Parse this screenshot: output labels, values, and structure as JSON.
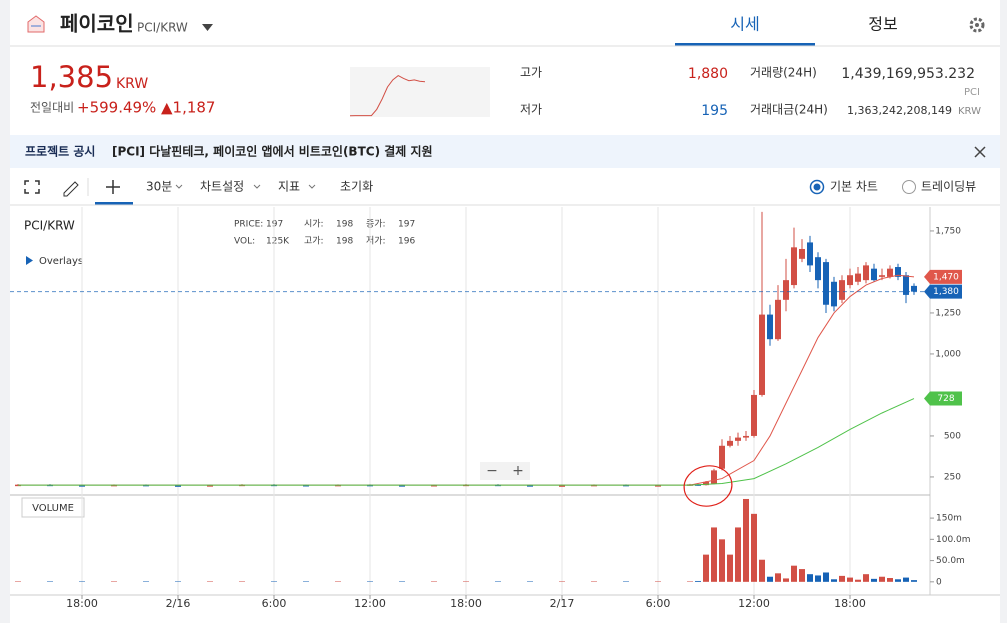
{
  "header": {
    "coin": "페이코인",
    "pair": "PCI/KRW",
    "tabs": [
      "시세",
      "정보"
    ]
  },
  "price": {
    "value": "1,385",
    "unit": "KRW",
    "change_label": "전일대비",
    "change_pct": "+599.49%",
    "change_abs": "▲1,187"
  },
  "sparkline": {
    "values": [
      195,
      197,
      196,
      198,
      200,
      420,
      780,
      1200,
      1450,
      1600,
      1500,
      1420,
      1450,
      1400,
      1385
    ],
    "ylim": [
      150,
      1900
    ],
    "color": "#d24f45"
  },
  "stats": {
    "high_label": "고가",
    "high": "1,880",
    "low_label": "저가",
    "low": "195",
    "volume_label": "거래량(24H)",
    "volume": "1,439,169,953.232",
    "volume_unit": "PCI",
    "amount_label": "거래대금(24H)",
    "amount": "1,363,242,208,149",
    "amount_unit": "KRW"
  },
  "notice": {
    "label": "프로젝트 공시",
    "text": "[PCI] 다날핀테크, 페이코인 앱에서 비트코인(BTC) 결제 지원"
  },
  "toolbar": {
    "interval": "30분",
    "chart_settings": "차트설정",
    "indicators": "지표",
    "reset": "초기화",
    "basic_chart": "기본 차트",
    "tradingview": "트레이딩뷰",
    "zoom_out": "−",
    "zoom_in": "+"
  },
  "legend": {
    "symbol": "PCI/KRW",
    "overlays": "Overlays",
    "row1": [
      "PRICE:",
      "197",
      "시가:",
      "198",
      "종가:",
      "197"
    ],
    "row2": [
      "VOL:",
      "125K",
      "고가:",
      "198",
      "저가:",
      "196"
    ]
  },
  "chart_data": {
    "type": "candlestick",
    "x": [
      -4,
      -2,
      0,
      2,
      4,
      6,
      8,
      10,
      12,
      14,
      16,
      18,
      20,
      22,
      24,
      26,
      28,
      30,
      32,
      34,
      36,
      38,
      38.5,
      39,
      39.5,
      40,
      40.5,
      41,
      41.5,
      42,
      42.5,
      43,
      43.5,
      44,
      44.5,
      45,
      45.5,
      46,
      46.5,
      47,
      47.5,
      48,
      48.5,
      49,
      49.5,
      50,
      50.5,
      51,
      51.5,
      52
    ],
    "open": [
      201,
      203,
      200,
      198,
      202,
      199,
      197,
      200,
      203,
      201,
      199,
      202,
      200,
      198,
      201,
      203,
      200,
      197,
      199,
      202,
      198,
      200,
      205,
      200,
      210,
      300,
      440,
      470,
      490,
      500,
      750,
      1240,
      1090,
      1330,
      1420,
      1580,
      1680,
      1590,
      1560,
      1440,
      1330,
      1420,
      1440,
      1450,
      1520,
      1470,
      1470,
      1530,
      1480,
      1415
    ],
    "high": [
      206,
      206,
      203,
      205,
      205,
      202,
      203,
      206,
      206,
      204,
      205,
      205,
      203,
      204,
      206,
      206,
      203,
      202,
      205,
      205,
      203,
      208,
      208,
      225,
      300,
      480,
      500,
      520,
      530,
      780,
      1866,
      1300,
      1420,
      1580,
      1770,
      1700,
      1720,
      1620,
      1580,
      1470,
      1480,
      1520,
      1530,
      1560,
      1550,
      1520,
      1540,
      1550,
      1500,
      1430
    ],
    "low": [
      198,
      197,
      195,
      195,
      196,
      194,
      194,
      197,
      198,
      196,
      196,
      197,
      195,
      195,
      198,
      197,
      194,
      194,
      196,
      195,
      195,
      197,
      196,
      198,
      205,
      290,
      430,
      440,
      470,
      490,
      740,
      1050,
      1080,
      1260,
      1400,
      1560,
      1500,
      1400,
      1250,
      1260,
      1310,
      1400,
      1420,
      1430,
      1440,
      1450,
      1460,
      1450,
      1310,
      1360
    ],
    "close": [
      203,
      200,
      198,
      202,
      199,
      197,
      200,
      203,
      201,
      199,
      202,
      200,
      198,
      201,
      203,
      200,
      197,
      199,
      202,
      198,
      200,
      205,
      200,
      220,
      290,
      440,
      470,
      490,
      500,
      750,
      1240,
      1090,
      1330,
      1450,
      1650,
      1640,
      1540,
      1450,
      1300,
      1290,
      1450,
      1480,
      1490,
      1540,
      1450,
      1480,
      1520,
      1470,
      1360,
      1380
    ],
    "up_color": "#d24f45",
    "down_color": "#1763b6",
    "xlim": [
      -4.5,
      53
    ],
    "xticks": [
      {
        "value": 0,
        "label": "18:00"
      },
      {
        "value": 6,
        "label": "2/16"
      },
      {
        "value": 12,
        "label": "6:00"
      },
      {
        "value": 18,
        "label": "12:00"
      },
      {
        "value": 24,
        "label": "18:00"
      },
      {
        "value": 30,
        "label": "2/17"
      },
      {
        "value": 36,
        "label": "6:00"
      },
      {
        "value": 42,
        "label": "12:00"
      },
      {
        "value": 48,
        "label": "18:00"
      }
    ],
    "ylim": [
      146,
      1896
    ],
    "yticks": [
      250,
      500,
      {
        "value": 1000,
        "label": "1,000"
      },
      {
        "value": 1250,
        "label": "1,250"
      },
      {
        "value": 1750,
        "label": "1,750"
      }
    ],
    "grid": "x",
    "current_price": {
      "value": 1380,
      "label": "1,380",
      "color": "#1763b6"
    },
    "moving_averages": [
      {
        "color": "#e0574b",
        "x": [
          -4,
          38,
          40,
          42,
          43,
          44,
          45,
          46,
          47,
          48,
          49,
          50,
          51,
          52
        ],
        "values": [
          200,
          200,
          240,
          350,
          500,
          700,
          900,
          1100,
          1250,
          1350,
          1420,
          1460,
          1480,
          1470
        ],
        "tag": {
          "value": 1470,
          "label": "1,470"
        }
      },
      {
        "color": "#4fc24a",
        "x": [
          -4,
          38,
          40,
          42,
          44,
          46,
          48,
          50,
          52
        ],
        "values": [
          200,
          200,
          210,
          240,
          330,
          430,
          540,
          640,
          728
        ],
        "tag": {
          "value": 728,
          "label": "728"
        }
      }
    ],
    "volume": {
      "title": "VOLUME",
      "values": [
        1,
        1,
        1,
        1,
        1,
        1,
        1,
        1,
        1,
        1,
        1,
        1,
        1,
        1,
        1,
        1,
        1,
        1,
        1,
        1,
        1,
        1,
        2,
        64,
        128,
        100,
        64,
        128,
        195,
        160,
        52,
        12,
        20,
        8,
        38,
        30,
        18,
        15,
        22,
        6,
        14,
        10,
        5,
        18,
        7,
        12,
        9,
        6,
        10,
        4
      ],
      "ylim": [
        -31,
        202
      ],
      "yticks": [
        {
          "value": 0,
          "label": "0"
        },
        {
          "value": 50,
          "label": "50.0m"
        },
        {
          "value": 100,
          "label": "100.0m"
        },
        {
          "value": 150,
          "label": "150m"
        }
      ]
    }
  }
}
